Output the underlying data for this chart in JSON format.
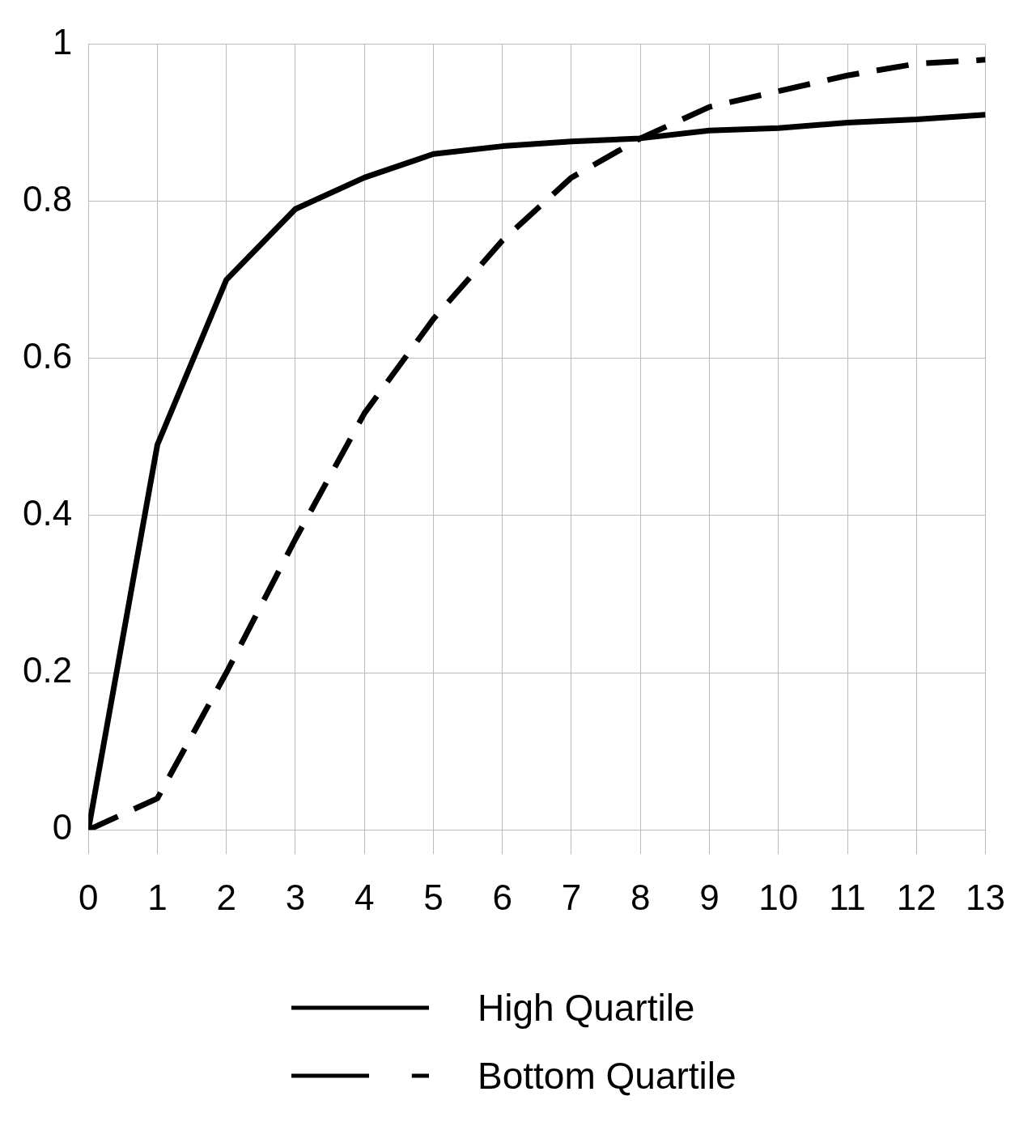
{
  "chart_data": {
    "type": "line",
    "x": [
      0,
      1,
      2,
      3,
      4,
      5,
      6,
      7,
      8,
      9,
      10,
      11,
      12,
      13
    ],
    "series": [
      {
        "name": "High Quartile",
        "color": "#000000",
        "line_style": "solid",
        "values": [
          0,
          0.49,
          0.7,
          0.79,
          0.83,
          0.86,
          0.87,
          0.876,
          0.88,
          0.89,
          0.893,
          0.9,
          0.904,
          0.91
        ]
      },
      {
        "name": "Bottom Quartile",
        "color": "#000000",
        "line_style": "dashed",
        "values": [
          0,
          0.04,
          0.2,
          0.37,
          0.53,
          0.65,
          0.75,
          0.83,
          0.88,
          0.92,
          0.94,
          0.96,
          0.975,
          0.98
        ]
      }
    ],
    "xlim": [
      0,
      13
    ],
    "xticks": [
      0,
      1,
      2,
      3,
      4,
      5,
      6,
      7,
      8,
      9,
      10,
      11,
      12,
      13
    ],
    "ylim": [
      0,
      1
    ],
    "yticks": [
      0,
      0.2,
      0.4,
      0.6,
      0.8,
      1
    ],
    "grid": true,
    "legend": "bottom",
    "marker": "none"
  }
}
